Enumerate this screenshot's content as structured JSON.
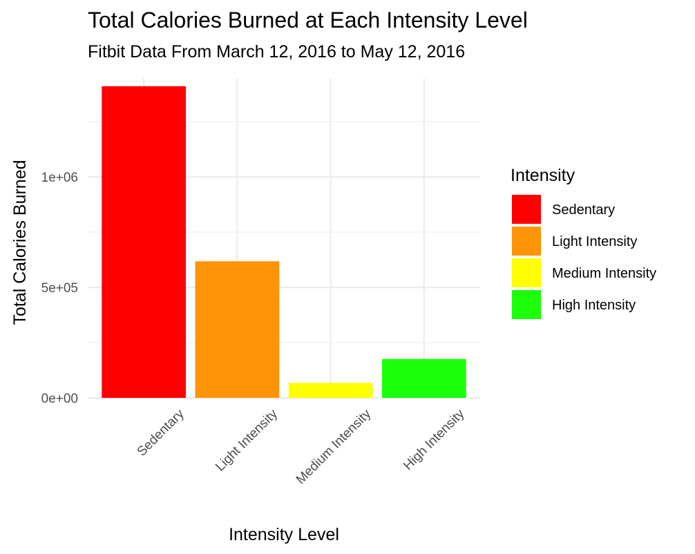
{
  "chart_data": {
    "type": "bar",
    "title": "Total Calories Burned at Each Intensity Level",
    "subtitle": "Fitbit Data From March 12, 2016 to May 12, 2016",
    "xlabel": "Intensity Level",
    "ylabel": "Total Calories Burned",
    "categories": [
      "Sedentary",
      "Light Intensity",
      "Medium Intensity",
      "High Intensity"
    ],
    "values": [
      1410000,
      618000,
      68000,
      176000
    ],
    "colors": [
      "#ff0000",
      "#ff9409",
      "#ffff00",
      "#1cff0b"
    ],
    "ylim": [
      0,
      1420000
    ],
    "y_ticks": [
      {
        "value": 0,
        "label": "0e+00"
      },
      {
        "value": 500000,
        "label": "5e+05"
      },
      {
        "value": 1000000,
        "label": "1e+06"
      }
    ],
    "y_minor_ticks": [
      250000,
      750000,
      1250000
    ],
    "grid": true,
    "legend": {
      "title": "Intensity",
      "position": "right",
      "entries": [
        "Sedentary",
        "Light Intensity",
        "Medium Intensity",
        "High Intensity"
      ]
    }
  }
}
